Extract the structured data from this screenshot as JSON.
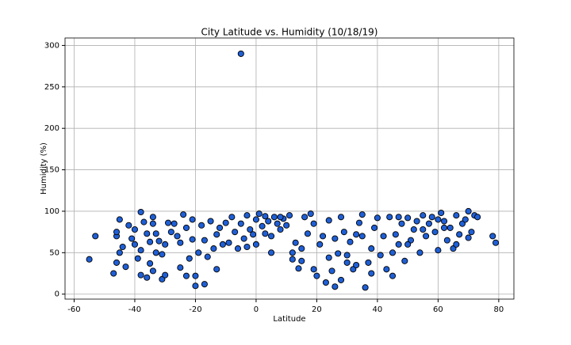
{
  "chart_data": {
    "type": "scatter",
    "title": "City Latitude vs. Humidity (10/18/19)",
    "x_label": "Latitude",
    "y_label": "Humidity (%)",
    "series": [
      {
        "color": "#1f5fd6",
        "edgecolor": "#000000",
        "x": [
          -55,
          -53,
          -47,
          -46,
          -46,
          -46,
          -45,
          -45,
          -43,
          -42,
          -41,
          -40,
          -40,
          -38,
          -38,
          -38,
          -37,
          -36,
          -35,
          -35,
          -34,
          -34,
          -34,
          -33,
          -33,
          -32,
          -31,
          -31,
          -30,
          -30,
          -29,
          -28,
          -27,
          -25,
          -25,
          -24,
          -23,
          -23,
          -22,
          -21,
          -21,
          -20,
          -20,
          -19,
          -18,
          -17,
          -17,
          -16,
          -15,
          -14,
          -13,
          -13,
          -12,
          -10,
          -9,
          -8,
          -7,
          -6,
          -5,
          -5,
          -4,
          -3,
          -2,
          -1,
          0,
          0,
          1,
          2,
          3,
          4,
          5,
          5,
          6,
          7,
          8,
          9,
          10,
          11,
          12,
          12,
          13,
          14,
          15,
          16,
          17,
          18,
          19,
          19,
          20,
          21,
          22,
          23,
          24,
          24,
          25,
          26,
          26,
          27,
          28,
          28,
          29,
          30,
          31,
          32,
          33,
          34,
          35,
          36,
          37,
          38,
          38,
          39,
          40,
          41,
          42,
          43,
          44,
          45,
          46,
          47,
          48,
          49,
          50,
          51,
          52,
          53,
          54,
          55,
          56,
          57,
          58,
          59,
          60,
          61,
          62,
          63,
          64,
          65,
          66,
          67,
          68,
          69,
          70,
          71,
          72,
          73,
          78,
          79,
          -44,
          -11,
          3,
          15,
          35,
          45,
          60,
          70,
          55,
          50,
          30,
          33,
          8,
          -3,
          -26,
          -36,
          -39,
          66,
          62,
          47
        ],
        "y": [
          42,
          70,
          25,
          38,
          70,
          75,
          90,
          50,
          33,
          83,
          67,
          60,
          78,
          23,
          99,
          53,
          87,
          20,
          37,
          63,
          28,
          93,
          85,
          50,
          73,
          64,
          48,
          18,
          23,
          60,
          86,
          75,
          85,
          62,
          32,
          96,
          22,
          80,
          43,
          66,
          90,
          10,
          22,
          50,
          83,
          12,
          65,
          45,
          88,
          55,
          30,
          72,
          80,
          86,
          62,
          93,
          75,
          55,
          290,
          85,
          67,
          95,
          78,
          72,
          60,
          90,
          97,
          82,
          94,
          88,
          50,
          70,
          93,
          85,
          78,
          91,
          83,
          95,
          50,
          42,
          62,
          31,
          40,
          93,
          73,
          97,
          85,
          30,
          22,
          60,
          70,
          14,
          44,
          89,
          28,
          9,
          67,
          49,
          17,
          93,
          75,
          38,
          63,
          30,
          72,
          86,
          96,
          8,
          38,
          55,
          25,
          80,
          92,
          47,
          70,
          30,
          93,
          22,
          72,
          60,
          85,
          40,
          92,
          65,
          78,
          88,
          50,
          95,
          70,
          85,
          93,
          75,
          53,
          98,
          88,
          65,
          80,
          55,
          95,
          72,
          85,
          90,
          100,
          75,
          95,
          93,
          70,
          62,
          57,
          60,
          73,
          55,
          70,
          50,
          90,
          68,
          78,
          60,
          47,
          35,
          93,
          57,
          70,
          73,
          43,
          60,
          80,
          93
        ]
      }
    ],
    "xlim": [
      -63,
      85
    ],
    "ylim": [
      -6,
      309
    ],
    "xticks": [
      -60,
      -40,
      -20,
      0,
      20,
      40,
      60,
      80
    ],
    "yticks": [
      0,
      50,
      100,
      150,
      200,
      250,
      300
    ],
    "grid": true
  }
}
